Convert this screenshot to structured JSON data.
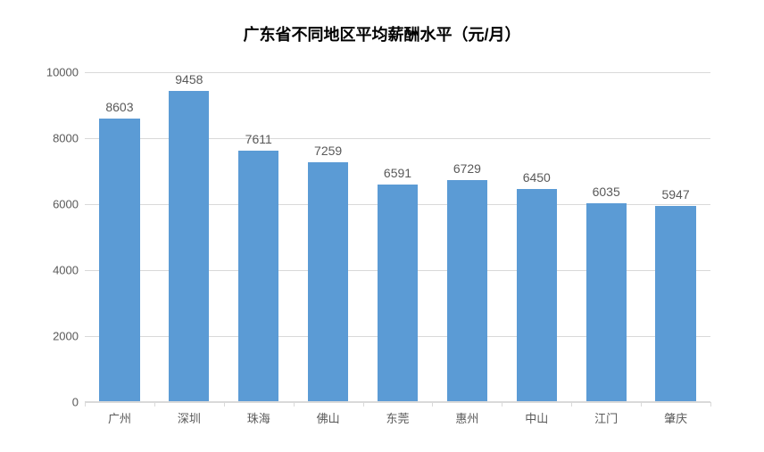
{
  "chart": {
    "type": "bar",
    "title": "广东省不同地区平均薪酬水平（元/月）",
    "title_fontsize": 18,
    "title_fontweight": "bold",
    "title_color": "#000000",
    "categories": [
      "广州",
      "深圳",
      "珠海",
      "佛山",
      "东莞",
      "惠州",
      "中山",
      "江门",
      "肇庆"
    ],
    "values": [
      8603,
      9458,
      7611,
      7259,
      6591,
      6729,
      6450,
      6035,
      5947
    ],
    "bar_color": "#5b9bd5",
    "ylim": [
      0,
      10000
    ],
    "ytick_step": 2000,
    "yticks": [
      0,
      2000,
      4000,
      6000,
      8000,
      10000
    ],
    "background_color": "#ffffff",
    "grid_color": "#d9d9d9",
    "axis_label_color": "#595959",
    "axis_label_fontsize": 13,
    "value_label_fontsize": 14,
    "bar_width": 0.58,
    "show_grid": true,
    "show_value_labels": true
  }
}
